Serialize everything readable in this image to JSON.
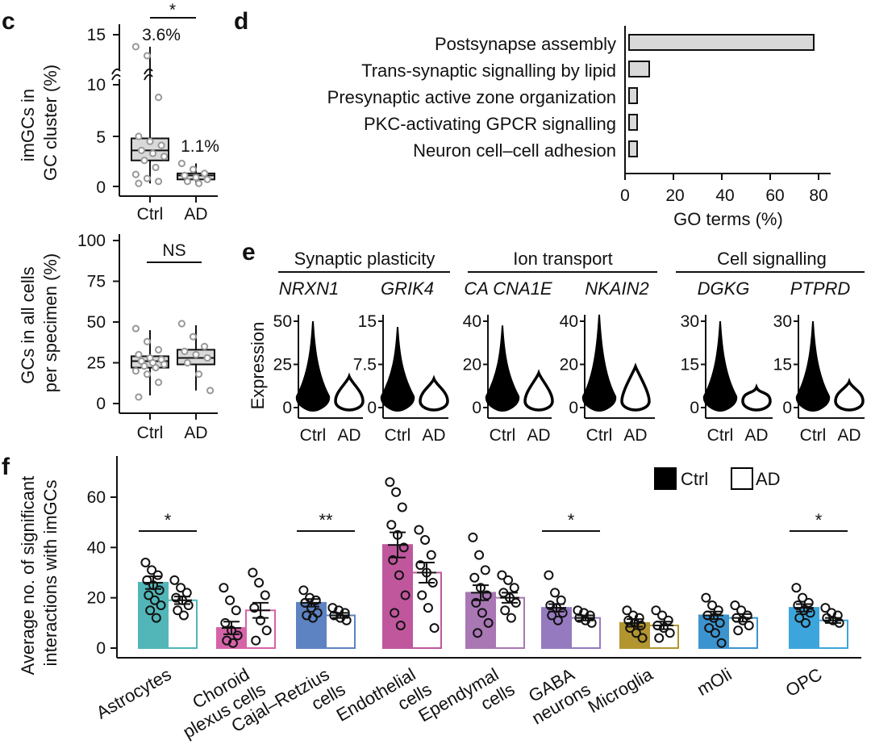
{
  "panel_labels": {
    "c": "c",
    "d": "d",
    "e": "e",
    "f": "f"
  },
  "chart_data": [
    {
      "id": "c_top",
      "type": "box",
      "ylabel": "imGCs in GC cluster (%)",
      "ylabel_lines": [
        "imGCs in",
        "GC cluster (%)"
      ],
      "categories": [
        "Ctrl",
        "AD"
      ],
      "yticks": [
        "0",
        "5",
        "10",
        "15"
      ],
      "axis_break": "5–12",
      "significance": "*",
      "annotations": [
        "3.6%",
        "1.1%"
      ],
      "boxes": [
        {
          "name": "Ctrl",
          "min": 0.3,
          "q1": 2.6,
          "median": 3.6,
          "q3": 4.8,
          "max": 13.8,
          "points": [
            13.8,
            12.9,
            8.7,
            5.0,
            4.5,
            4.1,
            3.6,
            3.3,
            3.0,
            2.6,
            1.9,
            1.2,
            0.8,
            0.5,
            0.3
          ]
        },
        {
          "name": "AD",
          "min": 0.2,
          "q1": 0.7,
          "median": 1.1,
          "q3": 1.3,
          "max": 2.3,
          "points": [
            2.3,
            1.7,
            1.3,
            1.1,
            0.9,
            0.7,
            0.5,
            0.3
          ]
        }
      ]
    },
    {
      "id": "c_bottom",
      "type": "box",
      "ylabel": "GCs in all cells per specimen (%)",
      "ylabel_lines": [
        "GCs in all cells",
        "per specimen (%)"
      ],
      "categories": [
        "Ctrl",
        "AD"
      ],
      "yticks": [
        "0",
        "25",
        "50",
        "75",
        "100"
      ],
      "ylim": [
        0,
        100
      ],
      "significance": "NS",
      "boxes": [
        {
          "name": "Ctrl",
          "min": 5,
          "q1": 22,
          "median": 26,
          "q3": 29,
          "max": 45,
          "points": [
            46,
            38,
            33,
            30,
            28,
            27,
            26,
            25,
            24,
            23,
            22,
            20,
            18,
            13,
            4
          ]
        },
        {
          "name": "AD",
          "min": 8,
          "q1": 24,
          "median": 28,
          "q3": 33,
          "max": 48,
          "points": [
            49,
            41,
            35,
            32,
            30,
            28,
            25,
            18,
            8
          ]
        }
      ]
    },
    {
      "id": "d",
      "type": "bar",
      "orientation": "horizontal",
      "categories": [
        "Postsynapse assembly",
        "Trans-synaptic signalling by lipid",
        "Presynaptic active zone organization",
        "PKC-activating GPCR signalling",
        "Neuron cell–cell adhesion"
      ],
      "values": [
        78,
        10,
        5,
        5,
        5
      ],
      "xlabel": "GO terms (%)",
      "xticks": [
        "0",
        "20",
        "40",
        "60",
        "80"
      ],
      "xlim": [
        0,
        85
      ]
    },
    {
      "id": "e",
      "type": "violin",
      "ylabel": "Expression",
      "groups": [
        {
          "title": "Synaptic plasticity",
          "genes": [
            {
              "gene": "NRXN1",
              "ymax": 50,
              "yticks": [
                "0",
                "25",
                "50"
              ],
              "ctrl_max": 50,
              "ad_max": 18
            },
            {
              "gene": "GRIK4",
              "ymax": 15,
              "yticks": [
                "0",
                "7.5",
                "15"
              ],
              "ctrl_max": 14,
              "ad_max": 5
            }
          ]
        },
        {
          "title": "Ion transport",
          "genes": [
            {
              "gene": "CA CNA1E",
              "ymax": 40,
              "yticks": [
                "0",
                "20",
                "40"
              ],
              "ctrl_max": 38,
              "ad_max": 16
            },
            {
              "gene": "NKAIN2",
              "ymax": 40,
              "yticks": [
                "0",
                "20",
                "40"
              ],
              "ctrl_max": 43,
              "ad_max": 19
            }
          ]
        },
        {
          "title": "Cell signalling",
          "genes": [
            {
              "gene": "DGKG",
              "ymax": 30,
              "yticks": [
                "0",
                "15",
                "30"
              ],
              "ctrl_max": 30,
              "ad_max": 7
            },
            {
              "gene": "PTPRD",
              "ymax": 30,
              "yticks": [
                "0",
                "15",
                "30"
              ],
              "ctrl_max": 30,
              "ad_max": 9
            }
          ]
        }
      ],
      "categories": [
        "Ctrl",
        "AD"
      ]
    },
    {
      "id": "f",
      "type": "bar",
      "ylabel": "Average no. of significant interactions with imGCs",
      "ylabel_lines": [
        "Average no. of significant",
        "interactions with imGCs"
      ],
      "yticks": [
        "0",
        "20",
        "40",
        "60"
      ],
      "ylim": [
        0,
        75
      ],
      "legend": [
        "Ctrl",
        "AD"
      ],
      "categories": [
        {
          "name": "Astrocytes",
          "lines": [
            "Astrocytes"
          ]
        },
        {
          "name": "Choroid plexus cells",
          "lines": [
            "Choroid",
            "plexus cells"
          ]
        },
        {
          "name": "Cajal–Retzius cells",
          "lines": [
            "Cajal–Retzius",
            "cells"
          ]
        },
        {
          "name": "Endothelial cells",
          "lines": [
            "Endothelial",
            "cells"
          ]
        },
        {
          "name": "Ependymal cells",
          "lines": [
            "Ependymal",
            "cells"
          ]
        },
        {
          "name": "GABA neurons",
          "lines": [
            "GABA",
            "neurons"
          ]
        },
        {
          "name": "Microglia",
          "lines": [
            "Microglia"
          ]
        },
        {
          "name": "mOli",
          "lines": [
            "mOli"
          ]
        },
        {
          "name": "OPC",
          "lines": [
            "OPC"
          ]
        }
      ],
      "colors": [
        "#52b6b8",
        "#d663a8",
        "#5e83c2",
        "#c0579d",
        "#a977b4",
        "#967ac0",
        "#b39530",
        "#3c94cf",
        "#3ca5db"
      ],
      "series": [
        {
          "name": "Ctrl",
          "values": [
            26,
            8,
            18,
            41,
            22,
            16,
            10,
            13,
            16
          ],
          "errors": [
            2.5,
            2.5,
            1.5,
            5,
            3,
            1.5,
            1.5,
            1.5,
            1.5
          ],
          "points": [
            [
              34,
              31,
              29,
              27,
              25,
              23,
              21,
              19,
              17,
              15,
              12
            ],
            [
              24,
              19,
              15,
              10,
              7,
              5,
              3,
              2
            ],
            [
              23,
              20,
              19,
              18,
              16,
              14,
              13,
              12
            ],
            [
              66,
              62,
              56,
              49,
              45,
              40,
              35,
              29,
              21,
              14,
              9
            ],
            [
              44,
              37,
              31,
              28,
              24,
              21,
              18,
              14,
              10,
              6
            ],
            [
              29,
              22,
              19,
              17,
              16,
              14,
              13,
              11
            ],
            [
              15,
              13,
              12,
              11,
              10,
              9,
              8,
              6,
              4
            ],
            [
              20,
              17,
              15,
              13,
              12,
              10,
              8,
              6,
              2
            ],
            [
              24,
              20,
              18,
              17,
              15,
              14,
              12,
              10
            ]
          ]
        },
        {
          "name": "AD",
          "values": [
            19,
            15,
            13,
            30,
            20,
            12,
            9,
            12,
            11
          ],
          "errors": [
            1.5,
            3,
            1,
            4,
            2,
            1,
            1.5,
            1.5,
            1
          ],
          "points": [
            [
              27,
              24,
              22,
              20,
              19,
              17,
              15,
              13
            ],
            [
              30,
              26,
              21,
              16,
              11,
              7,
              3
            ],
            [
              16,
              15,
              14,
              13,
              12,
              11
            ],
            [
              47,
              43,
              37,
              33,
              30,
              26,
              21,
              16,
              8
            ],
            [
              29,
              27,
              24,
              22,
              20,
              18,
              15,
              12
            ],
            [
              15,
              14,
              13,
              12,
              11,
              10
            ],
            [
              15,
              13,
              11,
              9,
              8,
              6,
              4
            ],
            [
              17,
              15,
              13,
              12,
              11,
              9,
              7
            ],
            [
              16,
              14,
              13,
              12,
              11,
              10
            ]
          ]
        }
      ],
      "significance": [
        {
          "category": 0,
          "label": "*"
        },
        {
          "category": 2,
          "label": "**"
        },
        {
          "category": 5,
          "label": "*"
        },
        {
          "category": 8,
          "label": "*"
        }
      ]
    }
  ]
}
